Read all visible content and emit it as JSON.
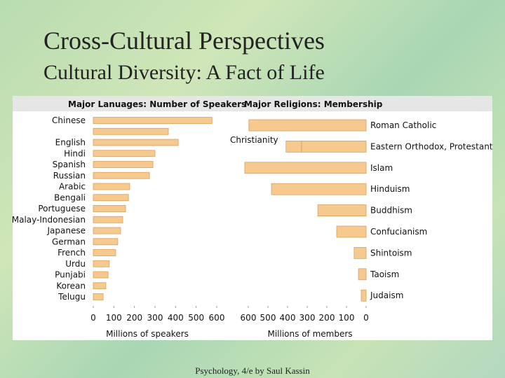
{
  "slide": {
    "title": "Cross-Cultural Perspectives",
    "subtitle": "Cultural Diversity: A Fact of Life",
    "footer": "Psychology, 4/e by Saul Kassin"
  },
  "chart_data": [
    {
      "type": "hbar",
      "title": "Major Lanuages: Number of Speakers",
      "x_label": "Millions of speakers",
      "categories": [
        "Chinese",
        null,
        "English",
        "Hindi",
        "Spanish",
        "Russian",
        "Arabic",
        "Bengali",
        "Portuguese",
        "Malay-Indonesian",
        "Japanese",
        "German",
        "French",
        "Urdu",
        "Punjabi",
        "Korean",
        "Telugu"
      ],
      "values": [
        577,
        365,
        413,
        300,
        290,
        273,
        177,
        171,
        157,
        143,
        133,
        119,
        109,
        78,
        72,
        61,
        48
      ],
      "color": "#f6c98e",
      "xlim": [
        0,
        600
      ],
      "xticks": [
        0,
        100,
        200,
        300,
        400,
        500,
        600
      ]
    },
    {
      "type": "hbar",
      "title": "Major Religions: Membership",
      "x_label": "Millions of members",
      "categories": [
        "Roman Catholic",
        "Eastern Orthodox, Protestant",
        "Islam",
        "Hinduism",
        "Buddhism",
        "Confucianism",
        "Shintoism",
        "Taoism",
        "Judaism"
      ],
      "series": [
        {
          "color": "#f6c98e",
          "values": [
            597,
            329,
            618,
            482,
            246,
            150,
            61,
            39,
            25
          ]
        },
        {
          "color": "#f6c98e",
          "values": [
            null,
            79,
            null,
            null,
            null,
            null,
            null,
            null,
            null
          ]
        }
      ],
      "annotation": "Christianity",
      "xlim": [
        600,
        0
      ],
      "xticks": [
        600,
        500,
        400,
        300,
        200,
        100,
        0
      ]
    }
  ]
}
